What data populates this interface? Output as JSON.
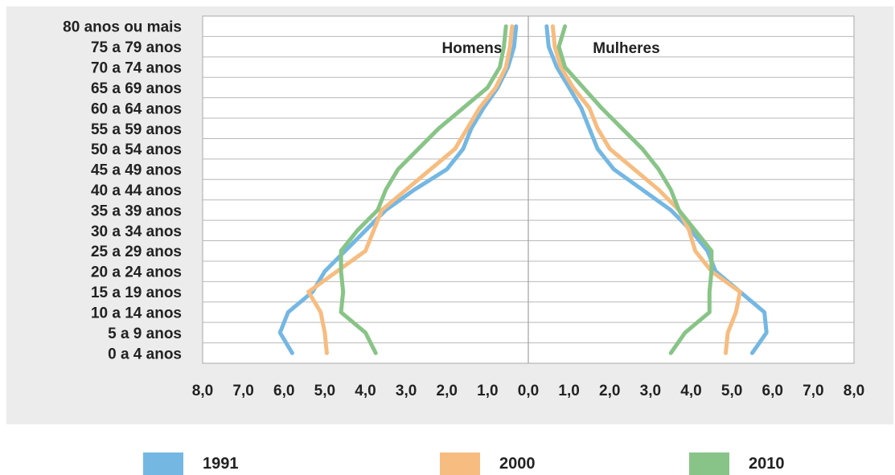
{
  "chart_data": {
    "type": "line",
    "panel_labels": {
      "left": "Homens",
      "right": "Mulheres"
    },
    "categories": [
      "80 anos ou mais",
      "75 a 79 anos",
      "70 a 74 anos",
      "65 a 69 anos",
      "60 a 64 anos",
      "55 a 59 anos",
      "50 a 54 anos",
      "45 a 49 anos",
      "40 a 44 anos",
      "35 a 39 anos",
      "30 a 34 anos",
      "25 a 29 anos",
      "20 a 24 anos",
      "15 a 19 anos",
      "10 a 14 anos",
      "5 a 9 anos",
      "0 a 4 anos"
    ],
    "x_ticks": [
      "8,0",
      "7,0",
      "6,0",
      "5,0",
      "4,0",
      "3,0",
      "2,0",
      "1,0",
      "0,0",
      "1,0",
      "2,0",
      "3,0",
      "4,0",
      "5,0",
      "6,0",
      "7,0",
      "8,0"
    ],
    "xlim": [
      -8,
      8
    ],
    "colors": {
      "1991": "#74b7e3",
      "2000": "#f7bc80",
      "2010": "#88c487",
      "background": "#ececec"
    },
    "series": [
      {
        "name": "1991",
        "homens": [
          0.3,
          0.35,
          0.5,
          0.75,
          1.1,
          1.4,
          1.6,
          2.0,
          2.8,
          3.5,
          4.0,
          4.5,
          5.0,
          5.3,
          5.9,
          6.1,
          5.8
        ],
        "mulheres": [
          0.45,
          0.5,
          0.7,
          1.0,
          1.3,
          1.5,
          1.7,
          2.1,
          2.8,
          3.5,
          4.0,
          4.4,
          4.6,
          5.2,
          5.8,
          5.85,
          5.5
        ]
      },
      {
        "name": "2000",
        "homens": [
          0.4,
          0.45,
          0.55,
          0.8,
          1.2,
          1.5,
          1.8,
          2.4,
          3.0,
          3.6,
          3.8,
          4.0,
          4.7,
          5.4,
          5.1,
          5.0,
          4.95
        ]
      },
      {
        "name": "2010",
        "homens": [
          0.55,
          0.6,
          0.7,
          1.0,
          1.6,
          2.2,
          2.7,
          3.2,
          3.5,
          3.7,
          4.2,
          4.6,
          4.6,
          4.55,
          4.6,
          4.0,
          3.75
        ],
        "mulheres": [
          0.9,
          0.75,
          0.9,
          1.35,
          1.8,
          2.3,
          2.8,
          3.2,
          3.5,
          3.7,
          4.1,
          4.5,
          4.5,
          4.45,
          4.45,
          3.85,
          3.5
        ]
      }
    ],
    "series_2000_mulheres": [
      0.6,
      0.65,
      0.8,
      1.1,
      1.5,
      1.7,
      2.0,
      2.6,
      3.2,
      3.7,
      3.95,
      4.1,
      4.5,
      5.2,
      5.1,
      4.9,
      4.85
    ],
    "legend": [
      "1991",
      "2000",
      "2010"
    ],
    "grid": true,
    "legend_position": "bottom"
  }
}
